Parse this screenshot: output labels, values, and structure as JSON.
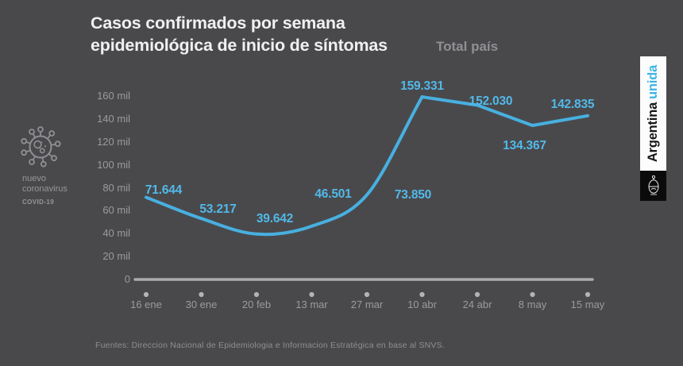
{
  "colors": {
    "background": "#49494c",
    "accent_line": "#48b0e0",
    "accent_label": "#52b9e8",
    "brand_cyan": "#3cb4e5",
    "axis_gray": "#aaabad"
  },
  "header": {
    "title_line1": "Casos confirmados por semana",
    "title_line2": "epidemiológica de inicio de síntomas",
    "subtitle": "Total país"
  },
  "sidebar": {
    "icon": "coronavirus-icon",
    "line1": "nuevo",
    "line2": "coronavirus",
    "line3": "COVID-19"
  },
  "brand": {
    "name": "Argentina",
    "suffix": "unida",
    "emblem": "argentina-coat-of-arms"
  },
  "footer": {
    "source": "Fuentes: Direccion Nacional de Epidemiologia e Informacion Estratégica en base al SNVS."
  },
  "chart_data": {
    "type": "line",
    "title": "Casos confirmados por semana epidemiológica de inicio de síntomas",
    "subtitle": "Total país",
    "categories": [
      "16 ene",
      "30 ene",
      "20 feb",
      "13 mar",
      "27 mar",
      "10 abr",
      "24 abr",
      "8 may",
      "15 may"
    ],
    "values": [
      71644,
      53217,
      39642,
      46501,
      73850,
      159331,
      152030,
      134367,
      142835
    ],
    "value_labels": [
      "71.644",
      "53.217",
      "39.642",
      "46.501",
      "73.850",
      "159.331",
      "152.030",
      "134.367",
      "142.835"
    ],
    "y_ticks": [
      "160 mil",
      "140 mil",
      "120 mil",
      "100 mil",
      "80 mil",
      "60 mil",
      "40 mil",
      "20 mil",
      "0"
    ],
    "y_tick_values": [
      160000,
      140000,
      120000,
      100000,
      80000,
      60000,
      40000,
      20000,
      0
    ],
    "ylim": [
      0,
      160000
    ],
    "xlabel": "",
    "ylabel": "",
    "grid": false,
    "legend": "none",
    "line_color": "#48b0e0"
  }
}
